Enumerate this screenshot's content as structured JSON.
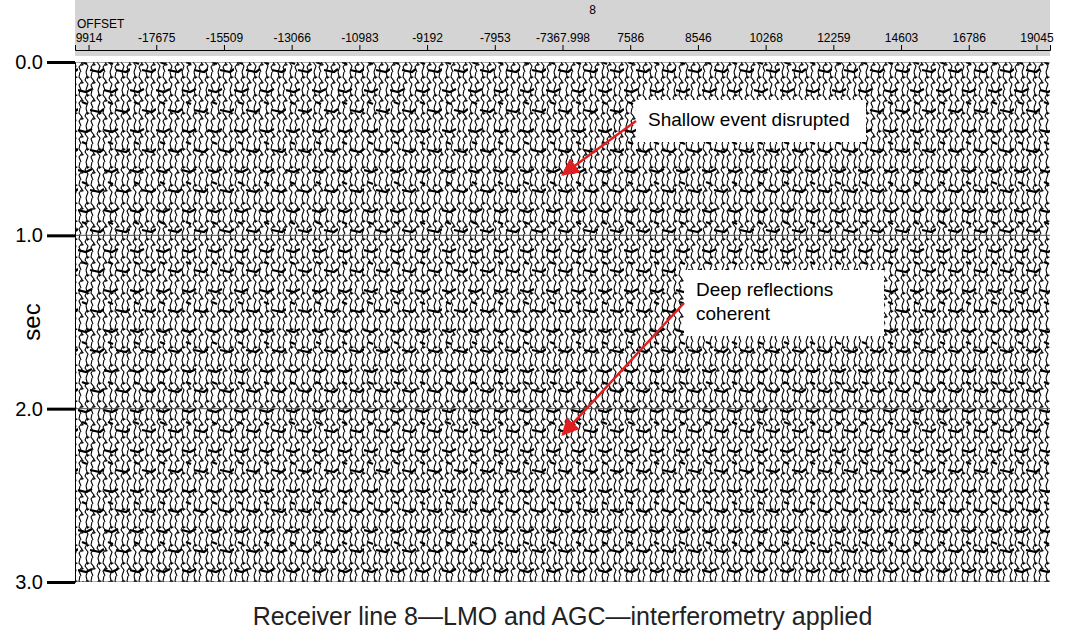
{
  "chart_data": {
    "type": "seismic",
    "title": "Receiver line 8—LMO and AGC—interferometry applied",
    "header": "8",
    "x_label": "OFFSET",
    "y_label": "sec",
    "categories": [
      "9914",
      "-17675",
      "-15509",
      "-13066",
      "-10983",
      "-9192",
      "-7953",
      "-7367.998",
      "7586",
      "8546",
      "10268",
      "12259",
      "14603",
      "16786",
      "19045"
    ],
    "ylim": [
      0,
      3
    ],
    "yticks": [
      {
        "value": 0,
        "label": "0.0"
      },
      {
        "value": 1,
        "label": "1.0"
      },
      {
        "value": 2,
        "label": "2.0"
      },
      {
        "value": 3,
        "label": "3.0"
      }
    ],
    "grid": true,
    "annotations": [
      {
        "text": "Shallow event disrupted",
        "x": "-7367.998",
        "y": 0.65
      },
      {
        "text": "Deep reflections coherent",
        "x": "-7367.998",
        "y": 2.15
      }
    ]
  }
}
